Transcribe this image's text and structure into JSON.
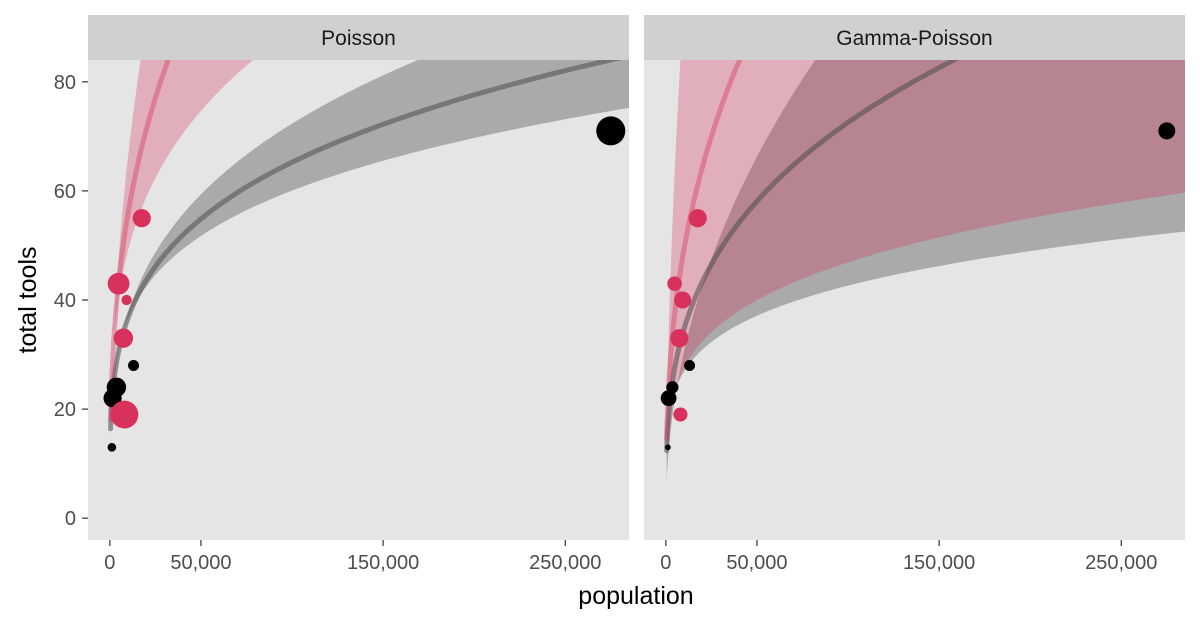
{
  "colors": {
    "panel_bg": "#e5e5e5",
    "strip_bg": "#d0d0d0",
    "high_contact": "#d8315b",
    "low_contact": "#000000",
    "high_ribbon": "#d8315b",
    "low_ribbon": "#7a7a7a"
  },
  "chart_data": {
    "type": "scatter",
    "xlabel": "population",
    "ylabel": "total tools",
    "x_ticks": [
      0,
      50000,
      150000,
      250000
    ],
    "x_tick_labels": [
      "0",
      "50,000",
      "150,000",
      "250,000"
    ],
    "y_ticks": [
      0,
      20,
      40,
      60,
      80
    ],
    "y_tick_labels": [
      "0",
      "20",
      "40",
      "60",
      "80"
    ],
    "xlim": [
      -12000,
      285000
    ],
    "ylim": [
      -4,
      84
    ],
    "grid": false,
    "legend": "none",
    "facets": [
      {
        "label": "Poisson",
        "low": {
          "a": 1.3,
          "b": 0.25,
          "lo_a": 1.62,
          "lo_b": 0.215,
          "hi_a": 1.0,
          "hi_b": 0.285
        },
        "high": {
          "a": 0.8,
          "b": 0.35,
          "lo_a": 1.5,
          "lo_b": 0.26,
          "hi_a": 0.05,
          "hi_b": 0.45
        },
        "points": [
          {
            "population": 1100,
            "total_tools": 13,
            "contact": "low",
            "size": 0.15
          },
          {
            "population": 1500,
            "total_tools": 22,
            "contact": "low",
            "size": 0.55
          },
          {
            "population": 3600,
            "total_tools": 24,
            "contact": "low",
            "size": 0.6
          },
          {
            "population": 4791,
            "total_tools": 43,
            "contact": "high",
            "size": 0.7
          },
          {
            "population": 7400,
            "total_tools": 33,
            "contact": "high",
            "size": 0.6
          },
          {
            "population": 8000,
            "total_tools": 19,
            "contact": "high",
            "size": 0.95
          },
          {
            "population": 9200,
            "total_tools": 40,
            "contact": "high",
            "size": 0.22
          },
          {
            "population": 13000,
            "total_tools": 28,
            "contact": "low",
            "size": 0.25
          },
          {
            "population": 17500,
            "total_tools": 55,
            "contact": "high",
            "size": 0.55
          },
          {
            "population": 275000,
            "total_tools": 71,
            "contact": "low",
            "size": 1.0
          }
        ]
      },
      {
        "label": "Gamma-Poisson",
        "low": {
          "a": 0.6,
          "b": 0.32,
          "lo_a": 1.45,
          "lo_b": 0.2,
          "hi_a": -1.0,
          "hi_b": 0.48
        },
        "high": {
          "a": 0.4,
          "b": 0.38,
          "lo_a": 1.2,
          "lo_b": 0.23,
          "hi_a": -0.6,
          "hi_b": 0.56
        },
        "points": [
          {
            "population": 1100,
            "total_tools": 13,
            "contact": "low",
            "size": 0.03
          },
          {
            "population": 1500,
            "total_tools": 22,
            "contact": "low",
            "size": 0.45
          },
          {
            "population": 3600,
            "total_tools": 24,
            "contact": "low",
            "size": 0.3
          },
          {
            "population": 4791,
            "total_tools": 43,
            "contact": "high",
            "size": 0.4
          },
          {
            "population": 7400,
            "total_tools": 33,
            "contact": "high",
            "size": 0.55
          },
          {
            "population": 8000,
            "total_tools": 19,
            "contact": "high",
            "size": 0.38
          },
          {
            "population": 9200,
            "total_tools": 40,
            "contact": "high",
            "size": 0.5
          },
          {
            "population": 13000,
            "total_tools": 28,
            "contact": "low",
            "size": 0.25
          },
          {
            "population": 17500,
            "total_tools": 55,
            "contact": "high",
            "size": 0.55
          },
          {
            "population": 275000,
            "total_tools": 71,
            "contact": "low",
            "size": 0.5
          }
        ]
      }
    ]
  }
}
